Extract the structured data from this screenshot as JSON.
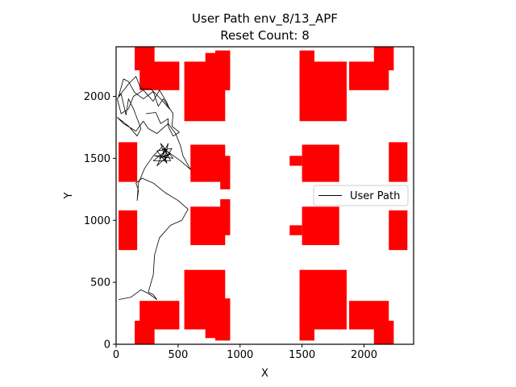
{
  "chart_data": {
    "type": "line",
    "title": "User Path env_8/13_APF",
    "subtitle": "Reset Count: 8",
    "xlabel": "X",
    "ylabel": "Y",
    "xlim": [
      0,
      2400
    ],
    "ylim": [
      0,
      2400
    ],
    "xticks": [
      0,
      500,
      1000,
      1500,
      2000
    ],
    "yticks": [
      0,
      500,
      1000,
      1500,
      2000
    ],
    "grid": false,
    "legend": {
      "placement": "right",
      "label": "User Path"
    },
    "colors": {
      "obstacle": "#ff0000",
      "path": "#000000"
    },
    "obstacles": [
      {
        "x0": 150,
        "x1": 310,
        "y0": 2210,
        "y1": 2400
      },
      {
        "x0": 190,
        "x1": 510,
        "y0": 2050,
        "y1": 2280
      },
      {
        "x0": 550,
        "x1": 880,
        "y0": 1800,
        "y1": 2280
      },
      {
        "x0": 720,
        "x1": 910,
        "y0": 2050,
        "y1": 2350
      },
      {
        "x0": 800,
        "x1": 920,
        "y0": 2050,
        "y1": 2370
      },
      {
        "x0": 1480,
        "x1": 1600,
        "y0": 2050,
        "y1": 2370
      },
      {
        "x0": 1480,
        "x1": 1860,
        "y0": 1800,
        "y1": 2280
      },
      {
        "x0": 1880,
        "x1": 2200,
        "y0": 2050,
        "y1": 2280
      },
      {
        "x0": 2080,
        "x1": 2240,
        "y0": 2210,
        "y1": 2400
      },
      {
        "x0": 20,
        "x1": 170,
        "y0": 1310,
        "y1": 1630
      },
      {
        "x0": 600,
        "x1": 880,
        "y0": 1310,
        "y1": 1610
      },
      {
        "x0": 700,
        "x1": 920,
        "y0": 1440,
        "y1": 1520
      },
      {
        "x0": 840,
        "x1": 920,
        "y0": 1250,
        "y1": 1500
      },
      {
        "x0": 1400,
        "x1": 1500,
        "y0": 1440,
        "y1": 1520
      },
      {
        "x0": 1500,
        "x1": 1800,
        "y0": 1310,
        "y1": 1610
      },
      {
        "x0": 2200,
        "x1": 2350,
        "y0": 1310,
        "y1": 1630
      },
      {
        "x0": 20,
        "x1": 170,
        "y0": 760,
        "y1": 1080
      },
      {
        "x0": 600,
        "x1": 880,
        "y0": 800,
        "y1": 1110
      },
      {
        "x0": 700,
        "x1": 920,
        "y0": 880,
        "y1": 960
      },
      {
        "x0": 840,
        "x1": 920,
        "y0": 920,
        "y1": 1170
      },
      {
        "x0": 1400,
        "x1": 1500,
        "y0": 880,
        "y1": 960
      },
      {
        "x0": 1500,
        "x1": 1800,
        "y0": 800,
        "y1": 1110
      },
      {
        "x0": 2200,
        "x1": 2350,
        "y0": 760,
        "y1": 1080
      },
      {
        "x0": 150,
        "x1": 310,
        "y0": 0,
        "y1": 190
      },
      {
        "x0": 190,
        "x1": 510,
        "y0": 120,
        "y1": 350
      },
      {
        "x0": 550,
        "x1": 880,
        "y0": 120,
        "y1": 600
      },
      {
        "x0": 720,
        "x1": 910,
        "y0": 50,
        "y1": 350
      },
      {
        "x0": 800,
        "x1": 920,
        "y0": 30,
        "y1": 370
      },
      {
        "x0": 1480,
        "x1": 1600,
        "y0": 30,
        "y1": 370
      },
      {
        "x0": 1480,
        "x1": 1860,
        "y0": 120,
        "y1": 600
      },
      {
        "x0": 1880,
        "x1": 2200,
        "y0": 120,
        "y1": 350
      },
      {
        "x0": 2080,
        "x1": 2240,
        "y0": 0,
        "y1": 190
      }
    ],
    "series": [
      {
        "name": "User Path",
        "points": [
          [
            20,
            360
          ],
          [
            120,
            380
          ],
          [
            200,
            440
          ],
          [
            260,
            410
          ],
          [
            330,
            360
          ],
          [
            300,
            400
          ],
          [
            260,
            420
          ],
          [
            300,
            560
          ],
          [
            310,
            720
          ],
          [
            350,
            860
          ],
          [
            440,
            960
          ],
          [
            530,
            1000
          ],
          [
            580,
            1090
          ],
          [
            500,
            1160
          ],
          [
            400,
            1220
          ],
          [
            300,
            1300
          ],
          [
            210,
            1340
          ],
          [
            160,
            1300
          ],
          [
            180,
            1240
          ],
          [
            170,
            1160
          ],
          [
            180,
            1300
          ],
          [
            230,
            1420
          ],
          [
            300,
            1520
          ],
          [
            380,
            1600
          ],
          [
            440,
            1480
          ],
          [
            300,
            1480
          ],
          [
            400,
            1560
          ],
          [
            350,
            1500
          ],
          [
            440,
            1540
          ],
          [
            330,
            1440
          ],
          [
            420,
            1620
          ],
          [
            390,
            1480
          ],
          [
            450,
            1580
          ],
          [
            330,
            1560
          ],
          [
            410,
            1460
          ],
          [
            360,
            1620
          ],
          [
            460,
            1500
          ],
          [
            310,
            1520
          ],
          [
            420,
            1520
          ],
          [
            380,
            1580
          ],
          [
            520,
            1480
          ],
          [
            600,
            1410
          ],
          [
            540,
            1520
          ],
          [
            520,
            1600
          ],
          [
            480,
            1700
          ],
          [
            420,
            1780
          ],
          [
            330,
            1700
          ],
          [
            260,
            1740
          ],
          [
            220,
            1800
          ],
          [
            160,
            1720
          ],
          [
            60,
            1780
          ],
          [
            10,
            1830
          ],
          [
            100,
            1760
          ],
          [
            170,
            1680
          ],
          [
            200,
            1740
          ],
          [
            140,
            1900
          ],
          [
            100,
            1980
          ],
          [
            80,
            1850
          ],
          [
            40,
            2020
          ],
          [
            10,
            1980
          ],
          [
            40,
            1860
          ],
          [
            100,
            1900
          ],
          [
            140,
            2000
          ],
          [
            220,
            2050
          ],
          [
            300,
            1960
          ],
          [
            350,
            2050
          ],
          [
            410,
            1950
          ],
          [
            430,
            1900
          ],
          [
            360,
            1980
          ],
          [
            280,
            2060
          ],
          [
            200,
            2060
          ],
          [
            160,
            2160
          ],
          [
            100,
            2100
          ],
          [
            70,
            2060
          ],
          [
            20,
            2000
          ],
          [
            60,
            2140
          ],
          [
            100,
            2120
          ],
          [
            150,
            2030
          ],
          [
            220,
            1980
          ],
          [
            300,
            2040
          ],
          [
            340,
            1920
          ],
          [
            380,
            1980
          ],
          [
            460,
            1860
          ],
          [
            450,
            1760
          ],
          [
            510,
            1710
          ],
          [
            460,
            1680
          ],
          [
            420,
            1760
          ],
          [
            420,
            1820
          ],
          [
            360,
            1780
          ],
          [
            320,
            1870
          ],
          [
            240,
            1860
          ]
        ]
      }
    ]
  }
}
